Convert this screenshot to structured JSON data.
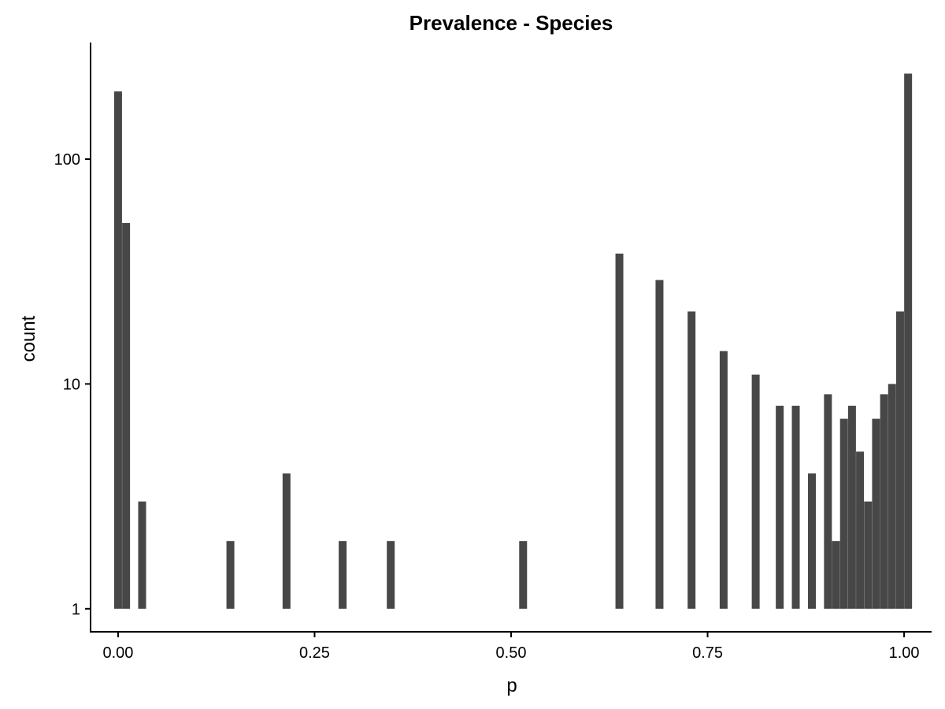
{
  "chart_data": {
    "type": "bar",
    "title": "Prevalence - Species",
    "xlabel": "p",
    "ylabel": "count",
    "y_scale": "log10",
    "xlim": [
      -0.035,
      1.035
    ],
    "ylim": [
      0.79,
      330
    ],
    "x_ticks": [
      {
        "value": 0.0,
        "label": "0.00"
      },
      {
        "value": 0.25,
        "label": "0.25"
      },
      {
        "value": 0.5,
        "label": "0.50"
      },
      {
        "value": 0.75,
        "label": "0.75"
      },
      {
        "value": 1.0,
        "label": "1.00"
      }
    ],
    "y_ticks": [
      {
        "value": 1,
        "label": "1"
      },
      {
        "value": 10,
        "label": "10"
      },
      {
        "value": 100,
        "label": "100"
      }
    ],
    "bar_color": "#474747",
    "grid": false,
    "bins": [
      {
        "x": 0.0,
        "count": 200
      },
      {
        "x": 0.0102,
        "count": 52
      },
      {
        "x": 0.0306,
        "count": 3
      },
      {
        "x": 0.1429,
        "count": 2
      },
      {
        "x": 0.2143,
        "count": 4
      },
      {
        "x": 0.2857,
        "count": 2
      },
      {
        "x": 0.3469,
        "count": 2
      },
      {
        "x": 0.5153,
        "count": 2
      },
      {
        "x": 0.6378,
        "count": 38
      },
      {
        "x": 0.6888,
        "count": 29
      },
      {
        "x": 0.7296,
        "count": 21
      },
      {
        "x": 0.7704,
        "count": 14
      },
      {
        "x": 0.8112,
        "count": 11
      },
      {
        "x": 0.8418,
        "count": 8
      },
      {
        "x": 0.8622,
        "count": 8
      },
      {
        "x": 0.8827,
        "count": 4
      },
      {
        "x": 0.9031,
        "count": 9
      },
      {
        "x": 0.9133,
        "count": 2
      },
      {
        "x": 0.9235,
        "count": 7
      },
      {
        "x": 0.9337,
        "count": 8
      },
      {
        "x": 0.9439,
        "count": 5
      },
      {
        "x": 0.9541,
        "count": 3
      },
      {
        "x": 0.9643,
        "count": 7
      },
      {
        "x": 0.9745,
        "count": 9
      },
      {
        "x": 0.9847,
        "count": 10
      },
      {
        "x": 0.9949,
        "count": 21
      },
      {
        "x": 1.0051,
        "count": 240
      }
    ]
  }
}
